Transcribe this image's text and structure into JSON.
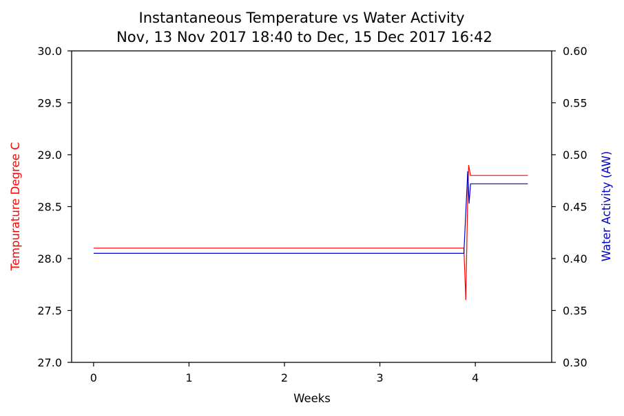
{
  "chart_data": {
    "type": "line",
    "title": "Instantaneous Temperature vs Water Activity",
    "subtitle": "Nov, 13 Nov 2017 18:40 to Dec, 15 Dec 2017 16:42",
    "xlabel": "Weeks",
    "ylabel_left": "Tempurature Degree C",
    "ylabel_right": "Water Activity (AW)",
    "xlim": [
      -0.23,
      4.8
    ],
    "ylim_left": [
      27.0,
      30.0
    ],
    "ylim_right": [
      0.3,
      0.6
    ],
    "x_ticks": [
      0,
      1,
      2,
      3,
      4
    ],
    "x_tick_labels": [
      "0",
      "1",
      "2",
      "3",
      "4"
    ],
    "y_left_ticks": [
      27.0,
      27.5,
      28.0,
      28.5,
      29.0,
      29.5,
      30.0
    ],
    "y_left_tick_labels": [
      "27.0",
      "27.5",
      "28.0",
      "28.5",
      "29.0",
      "29.5",
      "30.0"
    ],
    "y_right_ticks": [
      0.3,
      0.35,
      0.4,
      0.45,
      0.5,
      0.55,
      0.6
    ],
    "y_right_tick_labels": [
      "0.30",
      "0.35",
      "0.40",
      "0.45",
      "0.50",
      "0.55",
      "0.60"
    ],
    "grid": false,
    "series": [
      {
        "axis": "left",
        "color": "#ff0000",
        "x": [
          0,
          3.88,
          3.9,
          3.92,
          3.93,
          3.95,
          4.55
        ],
        "y": [
          28.1,
          28.1,
          27.6,
          28.6,
          28.9,
          28.8,
          28.8
        ]
      },
      {
        "axis": "right",
        "color": "#0000cc",
        "x": [
          0,
          3.88,
          3.92,
          3.935,
          3.95,
          4.55
        ],
        "y": [
          0.405,
          0.405,
          0.484,
          0.453,
          0.472,
          0.472
        ]
      }
    ]
  }
}
